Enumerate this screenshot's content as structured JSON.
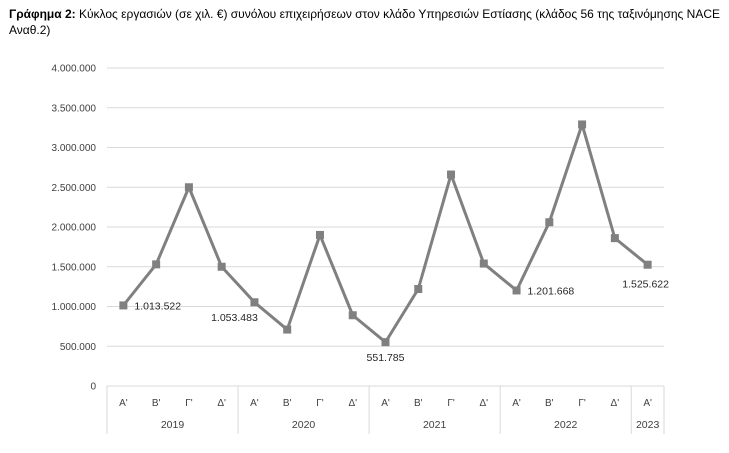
{
  "caption": {
    "label": "Γράφημα 2:",
    "text": " Κύκλος εργασιών (σε χιλ. €) συνόλου επιχειρήσεων στον κλάδο Υπηρεσιών Εστίασης (κλάδος 56 της ταξινόμησης NACE Αναθ.2)"
  },
  "chart_data": {
    "type": "line",
    "title": "",
    "xlabel": "",
    "ylabel": "",
    "ylim": [
      0,
      4000000
    ],
    "yticks": [
      0,
      500000,
      1000000,
      1500000,
      2000000,
      2500000,
      3000000,
      3500000,
      4000000
    ],
    "ytick_labels": [
      "0",
      "500.000",
      "1.000.000",
      "1.500.000",
      "2.000.000",
      "2.500.000",
      "3.000.000",
      "3.500.000",
      "4.000.000"
    ],
    "grid": true,
    "legend": "none",
    "line_color": "#808080",
    "grid_color": "#d9d9d9",
    "categories": [
      "Α'",
      "Β'",
      "Γ'",
      "Δ'",
      "Α'",
      "Β'",
      "Γ'",
      "Δ'",
      "Α'",
      "Β'",
      "Γ'",
      "Δ'",
      "Α'",
      "Β'",
      "Γ'",
      "Δ'",
      "Α'"
    ],
    "year_groups": [
      {
        "year": "2019",
        "count": 4
      },
      {
        "year": "2020",
        "count": 4
      },
      {
        "year": "2021",
        "count": 4
      },
      {
        "year": "2022",
        "count": 4
      },
      {
        "year": "2023",
        "count": 1
      }
    ],
    "values": [
      1013522,
      1530000,
      2500000,
      1500000,
      1053483,
      710000,
      1900000,
      890000,
      551785,
      1220000,
      2660000,
      1540000,
      1201668,
      2060000,
      3290000,
      1860000,
      1525622
    ],
    "data_labels": [
      {
        "index": 0,
        "text": "1.013.522"
      },
      {
        "index": 4,
        "text": "1.053.483"
      },
      {
        "index": 8,
        "text": "551.785"
      },
      {
        "index": 12,
        "text": "1.201.668"
      },
      {
        "index": 16,
        "text": "1.525.622"
      }
    ]
  }
}
